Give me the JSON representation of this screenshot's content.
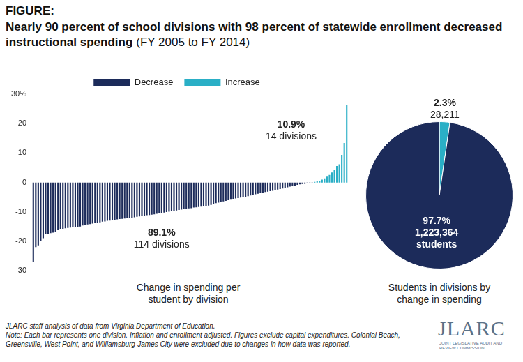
{
  "figure": {
    "label": "FIGURE:",
    "title": "Nearly 90 percent of school divisions with 98 percent of statewide enrollment decreased instructional spending",
    "subtitle": "(FY 2005 to FY 2014)"
  },
  "chart_data": [
    {
      "type": "bar",
      "xlabel": "Change in spending per student by division",
      "categories": [
        null,
        null,
        null,
        null,
        null,
        null,
        null,
        null,
        null,
        null,
        null,
        null,
        null,
        null,
        null,
        null,
        null,
        null,
        null,
        null,
        null,
        null,
        null,
        null,
        null,
        null,
        null,
        null,
        null,
        null,
        null,
        null,
        null,
        null,
        null,
        null,
        null,
        null,
        null,
        null,
        null,
        null,
        null,
        null,
        null,
        null,
        null,
        null,
        null,
        null,
        null,
        null,
        null,
        null,
        null,
        null,
        null,
        null,
        null,
        null,
        null,
        null,
        null,
        null,
        null,
        null,
        null,
        null,
        null,
        null,
        null,
        null,
        null,
        null,
        null,
        null,
        null,
        null,
        null,
        null,
        null,
        null,
        null,
        null,
        null,
        null,
        null,
        null,
        null,
        null,
        null,
        null,
        null,
        null,
        null,
        null,
        null,
        null,
        null,
        null,
        null,
        null,
        null,
        null,
        null,
        null,
        null,
        null,
        null,
        null,
        null,
        null,
        null,
        null,
        null,
        null,
        null,
        null,
        null,
        null,
        null,
        null,
        null,
        null,
        null,
        null,
        null,
        null
      ],
      "series": [
        {
          "name": "Decrease",
          "color": "#1c2b5a",
          "values": [
            -26.8,
            -21.9,
            -21.3,
            -19.8,
            -18.9,
            -17.6,
            -17.4,
            -17.2,
            -17.0,
            -16.9,
            -16.2,
            -15.9,
            -15.7,
            -15.5,
            -15.4,
            -15.3,
            -15.2,
            -15.1,
            -15.0,
            -14.9,
            -14.6,
            -14.4,
            -14.2,
            -14.1,
            -13.9,
            -13.8,
            -13.6,
            -13.5,
            -13.3,
            -13.2,
            -13.0,
            -12.9,
            -12.8,
            -12.6,
            -12.5,
            -12.4,
            -12.3,
            -12.2,
            -12.1,
            -12.0,
            -11.9,
            -11.8,
            -11.6,
            -11.5,
            -11.3,
            -11.2,
            -11.1,
            -11.0,
            -10.9,
            -10.8,
            -10.6,
            -10.5,
            -10.3,
            -10.2,
            -10.0,
            -9.9,
            -9.8,
            -9.6,
            -9.5,
            -9.3,
            -9.2,
            -9.0,
            -8.9,
            -8.8,
            -8.7,
            -8.5,
            -8.4,
            -8.3,
            -8.2,
            -8.1,
            -8.0,
            -7.8,
            -7.6,
            -7.3,
            -7.0,
            -6.8,
            -6.6,
            -6.4,
            -6.2,
            -6.0,
            -5.8,
            -5.6,
            -5.4,
            -5.3,
            -5.1,
            -5.0,
            -4.8,
            -4.6,
            -4.4,
            -4.2,
            -4.0,
            -3.8,
            -3.6,
            -3.4,
            -3.2,
            -3.1,
            -2.9,
            -2.8,
            -2.6,
            -2.4,
            -2.2,
            -2.0,
            -1.8,
            -1.6,
            -1.4,
            -1.2,
            -1.0,
            -0.8,
            -0.6,
            -0.5,
            -0.4,
            -0.3,
            -0.2,
            -0.1,
            null,
            null,
            null,
            null,
            null,
            null,
            null,
            null,
            null,
            null,
            null,
            null,
            null,
            null
          ]
        },
        {
          "name": "Increase",
          "color": "#2aafc6",
          "values": [
            null,
            null,
            null,
            null,
            null,
            null,
            null,
            null,
            null,
            null,
            null,
            null,
            null,
            null,
            null,
            null,
            null,
            null,
            null,
            null,
            null,
            null,
            null,
            null,
            null,
            null,
            null,
            null,
            null,
            null,
            null,
            null,
            null,
            null,
            null,
            null,
            null,
            null,
            null,
            null,
            null,
            null,
            null,
            null,
            null,
            null,
            null,
            null,
            null,
            null,
            null,
            null,
            null,
            null,
            null,
            null,
            null,
            null,
            null,
            null,
            null,
            null,
            null,
            null,
            null,
            null,
            null,
            null,
            null,
            null,
            null,
            null,
            null,
            null,
            null,
            null,
            null,
            null,
            null,
            null,
            null,
            null,
            null,
            null,
            null,
            null,
            null,
            null,
            null,
            null,
            null,
            null,
            null,
            null,
            null,
            null,
            null,
            null,
            null,
            null,
            null,
            null,
            null,
            null,
            null,
            null,
            null,
            null,
            null,
            null,
            null,
            null,
            null,
            null,
            0.2,
            0.4,
            0.6,
            1.0,
            1.4,
            2.0,
            2.6,
            3.4,
            4.2,
            5.6,
            6.2,
            9.4,
            13.4,
            26.2
          ]
        }
      ],
      "ylim": [
        -30,
        30
      ],
      "yticks": [
        {
          "value": 30,
          "label": "30%"
        },
        20,
        10,
        0,
        -10,
        -20,
        -30
      ],
      "grid": false,
      "legend": "top",
      "tick_labels": "y",
      "annotations": [
        {
          "text": "89.1%",
          "subtext": "114 divisions"
        },
        {
          "text": "10.9%",
          "subtext": "14 divisions"
        }
      ]
    },
    {
      "type": "pie",
      "xlabel": "Students in divisions by change in spending",
      "values": [
        2.3,
        97.7
      ],
      "value_labels": [
        "2.3%",
        "97.7%"
      ],
      "colors": [
        "#2aafc6",
        "#1c2b5a"
      ],
      "counts": [
        28211,
        1223364
      ],
      "count_labels": [
        "28,211",
        "1,223,364 students"
      ],
      "data_labels": true
    }
  ],
  "notes": [
    "JLARC staff analysis of data from Virginia Department of Education.",
    "Note: Each bar represents one division. Inflation and enrollment adjusted. Figures exclude capital expenditures. Colonial Beach, Greensville, West Point, and Williamsburg-James City were excluded due to changes in how data was reported."
  ],
  "logo": {
    "name": "JLARC",
    "subtitle": "JOINT LEGISLATIVE AUDIT AND REVIEW COMMISSION"
  }
}
